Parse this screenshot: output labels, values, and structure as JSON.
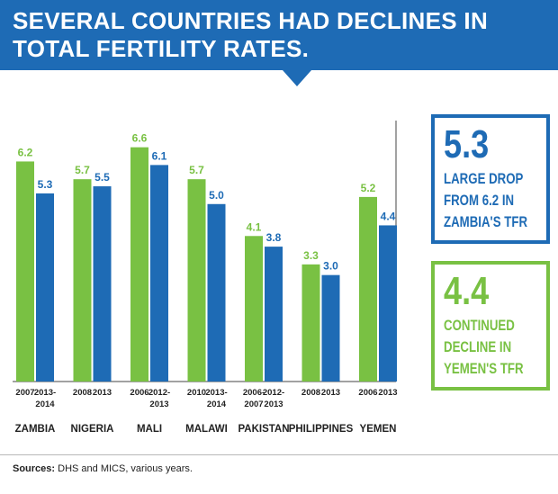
{
  "title": "SEVERAL COUNTRIES HAD DECLINES IN TOTAL FERTILITY RATES.",
  "colors": {
    "banner": "#1e6bb5",
    "first_survey": "#79c143",
    "second_survey": "#1e6bb5",
    "axis": "#444444"
  },
  "chart_data": {
    "type": "bar",
    "title": "",
    "xlabel": "",
    "ylabel": "",
    "ylim": [
      0,
      7.2
    ],
    "grid": false,
    "categories": [
      "ZAMBIA",
      "NIGERIA",
      "MALI",
      "MALAWI",
      "PAKISTAN",
      "PHILIPPINES",
      "YEMEN"
    ],
    "series": [
      {
        "values": [
          6.2,
          5.7,
          6.6,
          5.7,
          4.1,
          3.3,
          5.2
        ],
        "years": [
          "2007",
          "2008",
          "2006",
          "2010",
          "2006-\n2007",
          "2008",
          "2006"
        ]
      },
      {
        "values": [
          5.3,
          5.5,
          6.1,
          5.0,
          3.8,
          3.0,
          4.4
        ],
        "years": [
          "2013-\n2014",
          "2013",
          "2012-\n2013",
          "2013-\n2014",
          "2012-\n2013",
          "2013",
          "2013"
        ]
      }
    ]
  },
  "callouts": [
    {
      "value": "5.3",
      "text": [
        "LARGE DROP",
        "FROM 6.2 IN",
        "ZAMBIA'S TFR"
      ]
    },
    {
      "value": "4.4",
      "text": [
        "CONTINUED",
        "DECLINE IN",
        "YEMEN'S TFR"
      ]
    }
  ],
  "sources": {
    "label": "Sources:",
    "text": " DHS and MICS, various years."
  }
}
